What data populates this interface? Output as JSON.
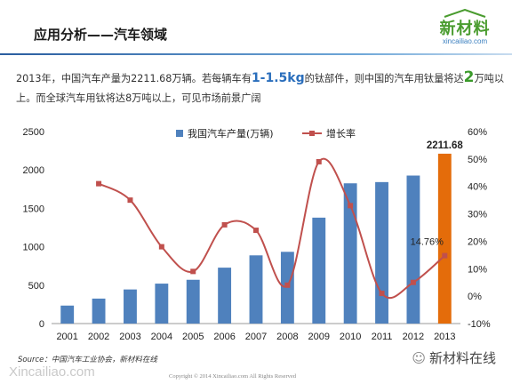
{
  "slide": {
    "title": "应用分析——汽车领域"
  },
  "logo": {
    "name_cn": "新材料",
    "name_en": "xincailiao.com"
  },
  "intro": {
    "part1": "2013年，中国汽车产量为2211.68万辆。若每辆车有",
    "highlight_weight": "1-1.5kg",
    "part2": "的钛部件，则中国的汽车用钛量将达",
    "highlight_amount": "2",
    "part3": "万吨以上。而全球汽车用钛将达8万吨以上，可见市场前景广阔"
  },
  "chart_data": {
    "type": "bar",
    "categories": [
      "2001",
      "2002",
      "2003",
      "2004",
      "2005",
      "2006",
      "2007",
      "2008",
      "2009",
      "2010",
      "2011",
      "2012",
      "2013"
    ],
    "series": [
      {
        "name": "我国汽车产量(万辆)",
        "type": "bar",
        "axis": "left",
        "values": [
          234,
          325,
          444,
          520,
          570,
          728,
          888,
          934,
          1379,
          1826,
          1842,
          1927,
          2211.68
        ]
      },
      {
        "name": "增长率",
        "type": "line",
        "axis": "right",
        "values": [
          null,
          41,
          35,
          18,
          9,
          26,
          24,
          4,
          49,
          33,
          1,
          5,
          14.76
        ]
      }
    ],
    "ylim_left": [
      0,
      2500
    ],
    "yticks_left": [
      0,
      500,
      1000,
      1500,
      2000,
      2500
    ],
    "ylim_right": [
      -10,
      60
    ],
    "yticks_right": [
      "-10%",
      "0%",
      "10%",
      "20%",
      "30%",
      "40%",
      "50%",
      "60%"
    ],
    "annotations": {
      "last_bar_value": "2211.68",
      "last_rate": "14.76%"
    },
    "legend_position": "top",
    "colors": {
      "bar": "#4f81bd",
      "bar_highlight": "#e46c0a",
      "line": "#c0504d"
    }
  },
  "footer": {
    "source": "Source：中国汽车工业协会，新材料在线",
    "watermark": "Xincailiao.com",
    "copyright": "Copyright © 2014   Xincailiao.com     All Rights Reserved",
    "wechat": "新材料在线"
  }
}
